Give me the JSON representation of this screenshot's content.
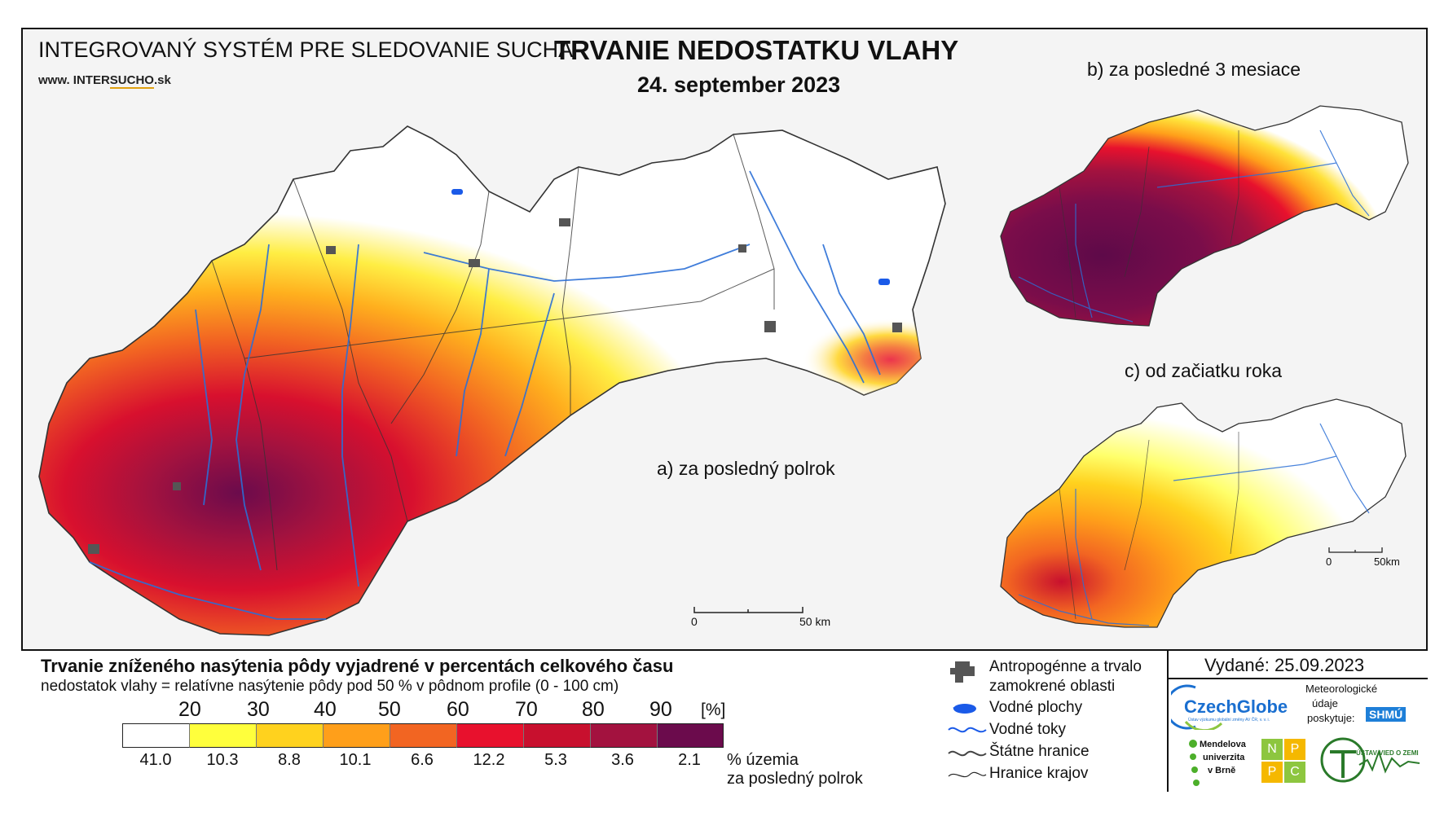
{
  "header": {
    "system_name": "INTEGROVANÝ SYSTÉM PRE SLEDOVANIE SUCHA",
    "website_prefix": "www. INTER",
    "website_mid": "SUCHO",
    "website_suffix": ".sk",
    "title": "TRVANIE NEDOSTATKU VLAHY",
    "date": "24. september 2023"
  },
  "maps": {
    "a_label": "a) za posledný polrok",
    "b_label": "b) za posledné 3 mesiace",
    "c_label": "c) od začiatku roka",
    "scale_a_zero": "0",
    "scale_a_end": "50 km",
    "scale_c_zero": "0",
    "scale_c_end": "50km"
  },
  "legend": {
    "title": "Trvanie zníženého nasýtenia pôdy vyjadrené v percentách celkového času",
    "subtitle": "nedostatok vlahy = relatívne nasýtenie pôdy pod 50 % v pôdnom profile (0 - 100 cm)",
    "unit": "[%]",
    "thresholds": [
      "20",
      "30",
      "40",
      "50",
      "60",
      "70",
      "80",
      "90"
    ],
    "classes": [
      {
        "color": "#ffffff",
        "share": "41.0"
      },
      {
        "color": "#ffff3c",
        "share": "10.3"
      },
      {
        "color": "#ffd21e",
        "share": "8.8"
      },
      {
        "color": "#ff9f1a",
        "share": "10.1"
      },
      {
        "color": "#f26522",
        "share": "6.6"
      },
      {
        "color": "#e8112d",
        "share": "12.2"
      },
      {
        "color": "#c8102e",
        "share": "5.3"
      },
      {
        "color": "#a3123f",
        "share": "3.6"
      },
      {
        "color": "#6b0b4c",
        "share": "2.1"
      }
    ],
    "share_label_line1": "% územia",
    "share_label_line2": "za posledný polrok"
  },
  "symbols": {
    "items": [
      {
        "name": "anthropogenic",
        "label": "Antropogénne a trvalo"
      },
      {
        "name": "anthropogenic2",
        "label": "zamokrené oblasti"
      },
      {
        "name": "water-bodies",
        "label": "Vodné plochy"
      },
      {
        "name": "rivers",
        "label": "Vodné toky"
      },
      {
        "name": "state-border",
        "label": "Štátne hranice"
      },
      {
        "name": "region-border",
        "label": "Hranice krajov"
      }
    ]
  },
  "issued": {
    "label": "Vydané: 25.09.2023"
  },
  "logos": {
    "czechglobe": "CzechGlobe",
    "czechglobe_sub": "Ústav výzkumu globální změny AV ČR, v. v. i.",
    "meteo_line1": "Meteorologické",
    "meteo_line2": "údaje",
    "meteo_line3": "poskytuje:",
    "shmu": "SHMÚ",
    "mendel_line1": "Mendelova",
    "mendel_line2": "univerzita",
    "mendel_line3": "v Brně",
    "nppc_n": "N",
    "nppc_p1": "P",
    "nppc_p2": "P",
    "nppc_c": "C",
    "uvz": "ÚSTAV VIED O ZEMI"
  },
  "colors": {
    "river": "#2b6fd6",
    "water": "#1a5ae8",
    "urban": "#555555",
    "border": "#333333"
  }
}
